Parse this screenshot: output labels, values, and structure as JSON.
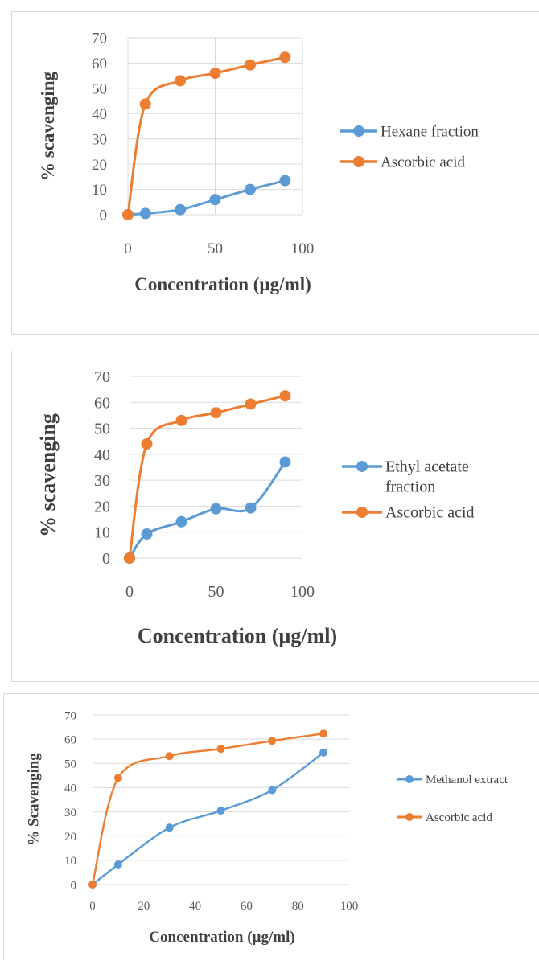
{
  "colors": {
    "blue": "#5b9bd5",
    "orange": "#ed7d31",
    "grid": "#d9d9d9",
    "text": "#595959"
  },
  "chart_data": [
    {
      "type": "line",
      "title": "",
      "xlabel": "Concentration (µg/ml)",
      "ylabel": "% scavenging",
      "xlim": [
        0,
        100
      ],
      "ylim": [
        0,
        70
      ],
      "xticks": [
        0,
        50,
        100
      ],
      "yticks": [
        0,
        10,
        20,
        30,
        40,
        50,
        60,
        70
      ],
      "grid": true,
      "legend": "right",
      "series": [
        {
          "name": "Hexane fraction",
          "color": "#5b9bd5",
          "x": [
            0,
            10,
            30,
            50,
            70,
            90
          ],
          "y": [
            0,
            0.5,
            2,
            6,
            10,
            13.5
          ]
        },
        {
          "name": "Ascorbic acid",
          "color": "#ed7d31",
          "x": [
            0,
            10,
            30,
            50,
            70,
            90
          ],
          "y": [
            0,
            43.8,
            53,
            56,
            59.3,
            62.3
          ]
        }
      ]
    },
    {
      "type": "line",
      "title": "",
      "xlabel": "Concentration (µg/ml)",
      "ylabel": "% scavenging",
      "xlim": [
        0,
        100
      ],
      "ylim": [
        0,
        70
      ],
      "xticks": [
        0,
        50,
        100
      ],
      "yticks": [
        0,
        10,
        20,
        30,
        40,
        50,
        60,
        70
      ],
      "grid": true,
      "legend": "right",
      "series": [
        {
          "name": "Ethyl acetate fraction",
          "color": "#5b9bd5",
          "x": [
            0,
            10,
            30,
            50,
            70,
            90
          ],
          "y": [
            0,
            9.3,
            14,
            19,
            19.3,
            37
          ]
        },
        {
          "name": "Ascorbic acid",
          "color": "#ed7d31",
          "x": [
            0,
            10,
            30,
            50,
            70,
            90
          ],
          "y": [
            0,
            44,
            53,
            56,
            59.3,
            62.5
          ]
        }
      ]
    },
    {
      "type": "line",
      "title": "",
      "xlabel": "Concentration (µg/ml)",
      "ylabel": "% Scavenging",
      "xlim": [
        0,
        100
      ],
      "ylim": [
        0,
        70
      ],
      "xticks": [
        0,
        20,
        40,
        60,
        80,
        100
      ],
      "yticks": [
        0,
        10,
        20,
        30,
        40,
        50,
        60,
        70
      ],
      "grid": true,
      "legend": "right",
      "series": [
        {
          "name": "Methanol extract",
          "color": "#5b9bd5",
          "x": [
            0,
            10,
            30,
            50,
            70,
            90
          ],
          "y": [
            0,
            8.3,
            23.5,
            30.5,
            39,
            54.5
          ]
        },
        {
          "name": "Ascorbic acid",
          "color": "#ed7d31",
          "x": [
            0,
            10,
            30,
            50,
            70,
            90
          ],
          "y": [
            0,
            44,
            53,
            56,
            59.3,
            62.3
          ]
        }
      ]
    }
  ]
}
